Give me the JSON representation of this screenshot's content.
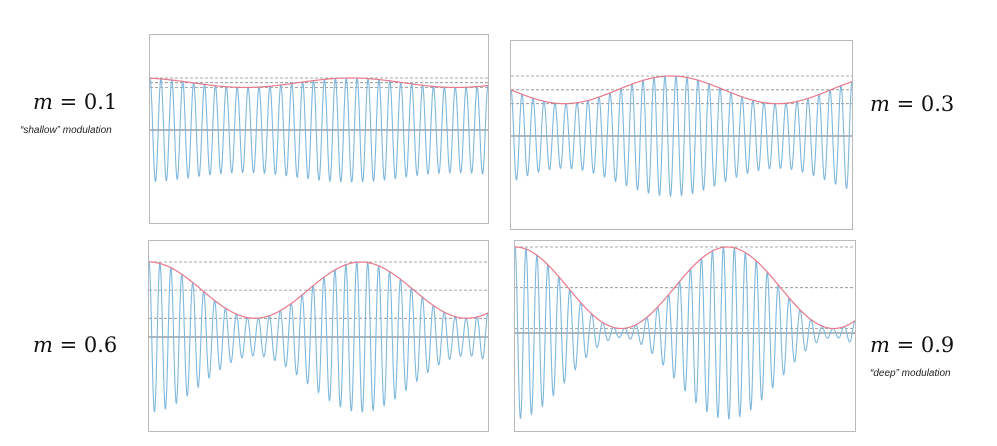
{
  "labels": {
    "var": "m",
    "eq": " = ",
    "panels": [
      {
        "value": "0.1",
        "note": "“shallow” modulation"
      },
      {
        "value": "0.3",
        "note": ""
      },
      {
        "value": "0.6",
        "note": ""
      },
      {
        "value": "0.9",
        "note": "“deep” modulation"
      }
    ]
  },
  "colors": {
    "carrier": "#7fb8dc",
    "envelope": "#e8788a",
    "dashed": "#8a8a8a",
    "axis": "#5f6e78"
  },
  "chart_data": [
    {
      "type": "line",
      "modulation_index": 0.1,
      "carrier_cycles": 31,
      "envelope_cycles": 1.6
    },
    {
      "type": "line",
      "modulation_index": 0.3,
      "carrier_cycles": 31,
      "envelope_cycles": 1.6
    },
    {
      "type": "line",
      "modulation_index": 0.6,
      "carrier_cycles": 31,
      "envelope_cycles": 1.6
    },
    {
      "type": "line",
      "modulation_index": 0.9,
      "carrier_cycles": 31,
      "envelope_cycles": 1.6
    }
  ]
}
